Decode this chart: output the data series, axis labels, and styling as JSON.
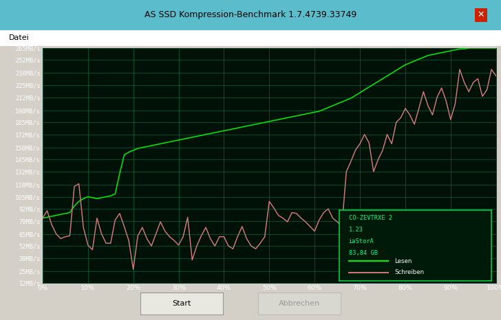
{
  "title": "AS SSD Kompression-Benchmark 1.7.4739.33749",
  "menu_label": "Datei",
  "frame_bg": "#d4d0c8",
  "titlebar_bg": "#5bbccc",
  "menubar_bg": "#ffffff",
  "plot_bg": "#001208",
  "grid_color": "#006644",
  "ytick_labels": [
    "12MB/s",
    "25MB/s",
    "39MB/s",
    "52MB/s",
    "65MB/s",
    "79MB/s",
    "92MB/s",
    "105MB/s",
    "118MB/s",
    "132MB/s",
    "145MB/s",
    "158MB/s",
    "172MB/s",
    "185MB/s",
    "198MB/s",
    "212MB/s",
    "225MB/s",
    "238MB/s",
    "252MB/s",
    "265MB/s"
  ],
  "ytick_values": [
    12,
    25,
    39,
    52,
    65,
    79,
    92,
    105,
    118,
    132,
    145,
    158,
    172,
    185,
    198,
    212,
    225,
    238,
    252,
    265
  ],
  "xtick_labels": [
    "0%",
    "10%",
    "20%",
    "30%",
    "40%",
    "50%",
    "60%",
    "70%",
    "80%",
    "90%",
    "100%"
  ],
  "xtick_values": [
    0,
    10,
    20,
    30,
    40,
    50,
    60,
    70,
    80,
    90,
    100
  ],
  "legend_text": [
    "CO-ZEVTRXE 2",
    "1.23",
    "iaStorA",
    "83,84 GB"
  ],
  "legend_lesen": "Lesen",
  "legend_schreiben": "Schreiben",
  "green_color": "#00ee00",
  "pink_color": "#cc7777",
  "legend_box_color": "#001a0a",
  "legend_border_color": "#00cc44",
  "legend_text_color": "#00ff88",
  "button_start": "Start",
  "button_abbrechen": "Abbrechen",
  "green_x": [
    0,
    1,
    2,
    3,
    4,
    5,
    6,
    7,
    8,
    9,
    10,
    11,
    12,
    13,
    14,
    15,
    16,
    17,
    18,
    19,
    20,
    21,
    22,
    23,
    24,
    25,
    26,
    27,
    28,
    29,
    30,
    31,
    32,
    33,
    34,
    35,
    36,
    37,
    38,
    39,
    40,
    41,
    42,
    43,
    44,
    45,
    46,
    47,
    48,
    49,
    50,
    51,
    52,
    53,
    54,
    55,
    56,
    57,
    58,
    59,
    60,
    61,
    62,
    63,
    64,
    65,
    66,
    67,
    68,
    69,
    70,
    71,
    72,
    73,
    74,
    75,
    76,
    77,
    78,
    79,
    80,
    81,
    82,
    83,
    84,
    85,
    86,
    87,
    88,
    89,
    90,
    91,
    92,
    93,
    94,
    95,
    96,
    97,
    98,
    99,
    100
  ],
  "green_y": [
    82,
    83,
    84,
    85,
    86,
    87,
    88,
    95,
    100,
    103,
    105,
    104,
    103,
    104,
    105,
    106,
    108,
    130,
    150,
    153,
    155,
    157,
    158,
    159,
    160,
    161,
    162,
    163,
    164,
    165,
    166,
    167,
    168,
    169,
    170,
    171,
    172,
    173,
    174,
    175,
    176,
    177,
    178,
    179,
    180,
    181,
    182,
    183,
    184,
    185,
    186,
    187,
    188,
    189,
    190,
    191,
    192,
    193,
    194,
    195,
    196,
    197,
    199,
    201,
    203,
    205,
    207,
    209,
    211,
    214,
    217,
    220,
    223,
    226,
    229,
    232,
    235,
    238,
    241,
    244,
    247,
    249,
    251,
    253,
    255,
    257,
    258,
    259,
    260,
    261,
    262,
    263,
    264,
    264,
    265,
    265,
    265,
    265,
    265,
    265,
    265
  ],
  "pink_x": [
    0,
    1,
    2,
    3,
    4,
    5,
    6,
    7,
    8,
    9,
    10,
    11,
    12,
    13,
    14,
    15,
    16,
    17,
    18,
    19,
    20,
    21,
    22,
    23,
    24,
    25,
    26,
    27,
    28,
    29,
    30,
    31,
    32,
    33,
    34,
    35,
    36,
    37,
    38,
    39,
    40,
    41,
    42,
    43,
    44,
    45,
    46,
    47,
    48,
    49,
    50,
    51,
    52,
    53,
    54,
    55,
    56,
    57,
    58,
    59,
    60,
    61,
    62,
    63,
    64,
    65,
    66,
    67,
    68,
    69,
    70,
    71,
    72,
    73,
    74,
    75,
    76,
    77,
    78,
    79,
    80,
    81,
    82,
    83,
    84,
    85,
    86,
    87,
    88,
    89,
    90,
    91,
    92,
    93,
    94,
    95,
    96,
    97,
    98,
    99,
    100
  ],
  "pink_y": [
    82,
    90,
    75,
    65,
    60,
    62,
    63,
    116,
    119,
    72,
    53,
    48,
    82,
    65,
    55,
    55,
    80,
    87,
    73,
    58,
    27,
    63,
    72,
    60,
    52,
    65,
    78,
    68,
    62,
    58,
    53,
    62,
    83,
    37,
    52,
    63,
    72,
    60,
    52,
    62,
    62,
    52,
    49,
    62,
    73,
    60,
    52,
    49,
    55,
    62,
    100,
    93,
    85,
    82,
    78,
    88,
    87,
    82,
    78,
    73,
    68,
    80,
    88,
    92,
    82,
    78,
    73,
    132,
    143,
    155,
    162,
    172,
    163,
    132,
    145,
    155,
    172,
    162,
    185,
    190,
    200,
    193,
    183,
    200,
    218,
    203,
    193,
    212,
    222,
    208,
    188,
    205,
    242,
    228,
    218,
    228,
    232,
    213,
    220,
    242,
    235
  ]
}
